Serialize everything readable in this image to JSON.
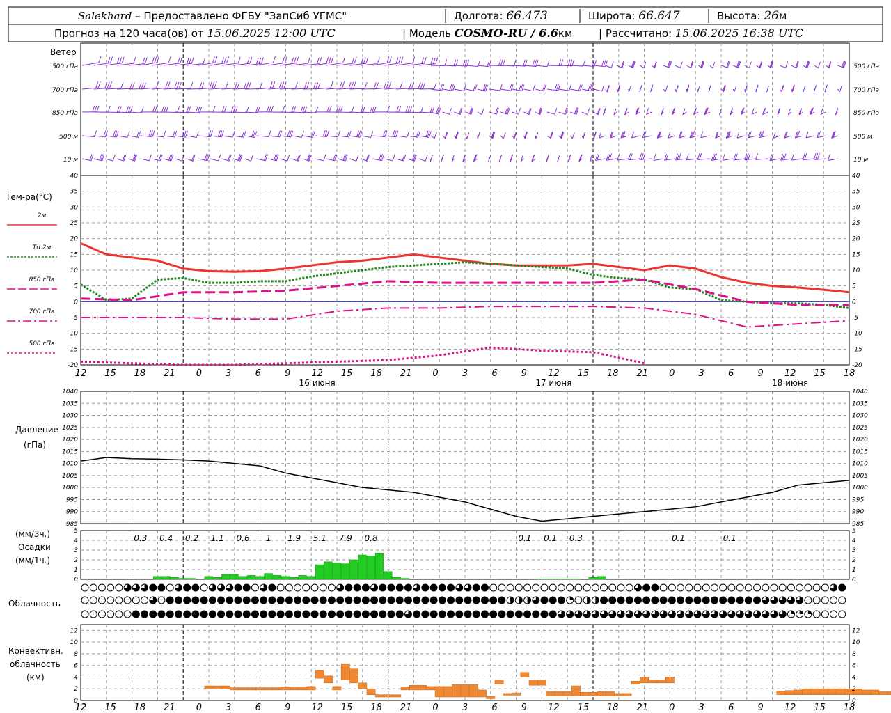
{
  "header": {
    "station": "Salekhard",
    "provider": " – Предоставлено ФГБУ \"ЗапСиб УГМС\"",
    "lon_label": "Долгота:",
    "lon": "66.473",
    "lat_label": "Широта:",
    "lat": "66.647",
    "alt_label": "Высота:",
    "alt": "26",
    "alt_unit": "м",
    "fc_label": "Прогноз на 120 часа(ов) от",
    "fc_time": "15.06.2025 12:00 UTC",
    "model_label": "| Модель",
    "model": "COSMO-RU / 6.6",
    "model_unit": "км",
    "calc_label": "| Рассчитано:",
    "calc_time": "15.06.2025 16:38 UTC"
  },
  "x_axis": {
    "hour_labels": [
      "12",
      "15",
      "18",
      "21",
      "0",
      "3",
      "6",
      "9",
      "12",
      "15",
      "18",
      "21",
      "0",
      "3",
      "6",
      "9",
      "12",
      "15",
      "18",
      "21",
      "0",
      "3",
      "6",
      "9",
      "12",
      "15",
      "18"
    ],
    "day_labels": [
      {
        "label": "16 июня",
        "hour": 12
      },
      {
        "label": "17 июня",
        "hour": 36
      },
      {
        "label": "18 июня",
        "hour": 60
      }
    ]
  },
  "wind_panel": {
    "title": "Ветер",
    "levels": [
      "500 гПа",
      "700 гПа",
      "850 гПа",
      "500 м",
      "10  м"
    ]
  },
  "temp_panel": {
    "title": "Тем-ра(°C)",
    "legend": [
      {
        "label": "2м",
        "color": "#ee3333",
        "style": "solid"
      },
      {
        "label": "Td  2м",
        "color": "#228822",
        "style": "dotted"
      },
      {
        "label": "850 гПа",
        "color": "#dd1188",
        "style": "dashed"
      },
      {
        "label": "700 гПа",
        "color": "#dd1188",
        "style": "dashdot"
      },
      {
        "label": "500 гПа",
        "color": "#dd1188",
        "style": "dot"
      }
    ],
    "y_ticks": [
      40,
      35,
      30,
      25,
      20,
      15,
      10,
      5,
      0,
      -5,
      -10,
      -15,
      -20
    ]
  },
  "pressure_panel": {
    "title_1": "Давление",
    "title_2": "(гПа)",
    "y_ticks": [
      1040,
      1035,
      1030,
      1025,
      1020,
      1015,
      1010,
      1005,
      1000,
      995,
      990,
      985
    ]
  },
  "precip_panel": {
    "unit_3h": "(мм/3ч.)",
    "title": "Осадки",
    "unit_1h": "(мм/1ч.)",
    "y_ticks": [
      5,
      4,
      3,
      2,
      1,
      0
    ],
    "totals": [
      {
        "h": 9,
        "v": "0.3"
      },
      {
        "h": 12,
        "v": "0.4"
      },
      {
        "h": 15,
        "v": "0.2"
      },
      {
        "h": 18,
        "v": "1.1"
      },
      {
        "h": 21,
        "v": "0.6"
      },
      {
        "h": 24,
        "v": "1"
      },
      {
        "h": 27,
        "v": "1.9"
      },
      {
        "h": 30,
        "v": "5.1"
      },
      {
        "h": 33,
        "v": "7.9"
      },
      {
        "h": 36,
        "v": "0.8"
      },
      {
        "h": 54,
        "v": "0.1"
      },
      {
        "h": 57,
        "v": "0.1"
      },
      {
        "h": 60,
        "v": "0.3"
      },
      {
        "h": 72,
        "v": "0.1"
      },
      {
        "h": 78,
        "v": "0.1"
      }
    ]
  },
  "cloud_panel": {
    "title": "Облачность",
    "rows": [
      "0000033344034403334403400000003444344443444433440000000000000000034400000000000000000000344444444444444444444433441143",
      "0000000030444444444444444444444444444444444444444422234441022444444444444444444433333000000000000000000000000000000000",
      "0000004444444444444444444444444444444434444444444444444433333333333333333333333333311100000000000000000000000000044444"
    ]
  },
  "conv_panel": {
    "title_1": "Конвективн.",
    "title_2": "облачность",
    "title_3": "(км)",
    "y_ticks": [
      12,
      10,
      8,
      6,
      4,
      2,
      0
    ]
  },
  "colors": {
    "wind": "#8833cc",
    "t2m": "#ee3333",
    "td2m": "#228822",
    "t850": "#dd1188",
    "t700": "#dd1188",
    "t500": "#dd1188",
    "zero_line": "#3333cc",
    "pressure": "#000000",
    "precip": "#22cc22",
    "conv": "#ee8833",
    "grid": "#999999"
  },
  "chart_data": [
    {
      "type": "line",
      "title": "Тем-ра(°C)",
      "ylim": [
        -20,
        40
      ],
      "x_unit": "hours from 15.06.2025 12:00 UTC",
      "series": [
        {
          "name": "2м",
          "x": [
            0,
            3,
            6,
            9,
            12,
            15,
            18,
            21,
            24,
            27,
            30,
            33,
            36,
            39,
            42,
            45,
            48,
            51,
            54,
            57,
            60,
            63,
            66,
            69,
            72,
            75,
            78,
            81,
            84,
            87,
            90
          ],
          "values": [
            18.5,
            15,
            14,
            13,
            10.5,
            9.7,
            9.5,
            9.7,
            10.5,
            11.5,
            12.5,
            13,
            14,
            15,
            14,
            13,
            12,
            11.5,
            11.5,
            11.5,
            12,
            11,
            10,
            11.5,
            10.5,
            7.8,
            6,
            5,
            4.5,
            3.8,
            3
          ]
        },
        {
          "name": "Td  2м",
          "x": [
            0,
            3,
            6,
            9,
            12,
            15,
            18,
            21,
            24,
            27,
            30,
            33,
            36,
            39,
            42,
            45,
            48,
            51,
            54,
            57,
            60,
            63,
            66,
            69,
            72,
            75,
            78,
            81,
            84,
            87,
            90
          ],
          "values": [
            5.5,
            0.5,
            1,
            7,
            7.5,
            6,
            6,
            6.5,
            6.5,
            8,
            9,
            10,
            11,
            11.5,
            12,
            12.5,
            12,
            11.5,
            11,
            10.5,
            8.5,
            7.5,
            7,
            4.5,
            4,
            0.5,
            0,
            -0.5,
            -0.5,
            -1,
            -2
          ]
        },
        {
          "name": "850 гПа",
          "x": [
            0,
            6,
            12,
            18,
            24,
            30,
            36,
            42,
            48,
            54,
            60,
            66,
            72,
            78,
            84,
            90
          ],
          "values": [
            1,
            0.5,
            3,
            3,
            3.5,
            5,
            6.5,
            6,
            6,
            6,
            6,
            7,
            4,
            0,
            -1,
            -1
          ]
        },
        {
          "name": "700 гПа",
          "x": [
            0,
            6,
            12,
            18,
            24,
            30,
            36,
            42,
            48,
            54,
            60,
            66,
            72,
            78,
            84,
            90
          ],
          "values": [
            -5,
            -5,
            -5,
            -5.5,
            -5.5,
            -3,
            -2,
            -2,
            -1.5,
            -1.5,
            -1.5,
            -2,
            -4,
            -8,
            -7,
            -6
          ]
        },
        {
          "name": "500 гПа",
          "x": [
            0,
            6,
            12,
            18,
            24,
            30,
            36,
            42,
            48,
            54,
            60,
            66
          ],
          "values": [
            -19,
            -19.5,
            -20,
            -20,
            -19.5,
            -19,
            -18.5,
            -17,
            -14.5,
            -15.5,
            -16,
            -19.5
          ]
        }
      ]
    },
    {
      "type": "line",
      "title": "Давление (гПа)",
      "ylim": [
        985,
        1040
      ],
      "x": [
        0,
        3,
        6,
        9,
        12,
        15,
        18,
        21,
        24,
        27,
        30,
        33,
        36,
        39,
        42,
        45,
        48,
        51,
        54,
        57,
        60,
        63,
        66,
        69,
        72,
        75,
        78,
        81,
        84,
        87,
        90
      ],
      "values": [
        1011,
        1012.5,
        1012,
        1011.8,
        1011.5,
        1011,
        1010,
        1009,
        1006,
        1004,
        1002,
        1000,
        999,
        998,
        996,
        994,
        991,
        988,
        986,
        987,
        988,
        989,
        990,
        991,
        992,
        994,
        996,
        998,
        1001,
        1002,
        1003
      ]
    },
    {
      "type": "bar",
      "title": "Осадки (мм/1ч.)",
      "ylim": [
        0,
        5
      ],
      "x": [
        9,
        10,
        11,
        12,
        13,
        14,
        15,
        16,
        17,
        18,
        19,
        20,
        21,
        22,
        23,
        24,
        25,
        26,
        27,
        28,
        29,
        30,
        31,
        32,
        33,
        34,
        35,
        36,
        37,
        38,
        54,
        55,
        56,
        57,
        58,
        60,
        61
      ],
      "values": [
        0.3,
        0.3,
        0.2,
        0.1,
        0.1,
        0.0,
        0.3,
        0.2,
        0.5,
        0.5,
        0.3,
        0.4,
        0.3,
        0.6,
        0.4,
        0.3,
        0.2,
        0.4,
        0.3,
        1.5,
        1.8,
        1.7,
        1.6,
        2.0,
        2.5,
        2.4,
        2.7,
        0.8,
        0.2,
        0.1,
        0.05,
        0.05,
        0.05,
        0.05,
        0.05,
        0.2,
        0.3
      ]
    },
    {
      "type": "bar",
      "title": "Конвективн. облачность (км)",
      "ylim": [
        0,
        13
      ],
      "bars": [
        {
          "x": [
            15,
            16,
            17
          ],
          "top": [
            2.5,
            2.5,
            2.5
          ],
          "base": [
            2,
            2,
            2
          ]
        },
        {
          "x": [
            18,
            19,
            20,
            21,
            22,
            23,
            24
          ],
          "top": [
            2.2,
            2.2,
            2.2,
            2.2,
            2.2,
            2.2,
            2.3
          ],
          "base": [
            1.8,
            1.8,
            1.8,
            1.8,
            1.8,
            1.8,
            1.8
          ]
        },
        {
          "x": [
            25,
            26,
            27,
            28,
            29,
            30,
            31
          ],
          "top": [
            2.3,
            2.3,
            2.4,
            5.2,
            4.2,
            2.4,
            6.3
          ],
          "base": [
            1.8,
            1.8,
            1.8,
            3.8,
            3,
            1.8,
            3.5
          ]
        },
        {
          "x": [
            32,
            33,
            34,
            35
          ],
          "top": [
            5.4,
            3,
            2,
            1
          ],
          "base": [
            3,
            2,
            1,
            0.6
          ]
        },
        {
          "x": [
            36,
            37,
            38,
            39,
            40,
            41
          ],
          "top": [
            1,
            1,
            2.3,
            2.6,
            2.6,
            2.4
          ],
          "base": [
            0.6,
            0.6,
            1.8,
            1.8,
            1.8,
            1.8
          ]
        },
        {
          "x": [
            42,
            43,
            44,
            45,
            46,
            47,
            48
          ],
          "top": [
            2.4,
            2.4,
            2.7,
            2.7,
            2.7,
            1.8,
            0.7
          ],
          "base": [
            0.6,
            0.6,
            0.6,
            0.6,
            0.6,
            0.6,
            0.3
          ]
        },
        {
          "x": [
            49,
            50,
            51,
            52,
            53,
            54,
            55
          ],
          "top": [
            3.5,
            1.2,
            1.3,
            4.8,
            3.5,
            3.5,
            1.5
          ],
          "base": [
            2.8,
            0.9,
            0.9,
            4,
            2.6,
            2.6,
            0.8
          ]
        },
        {
          "x": [
            56,
            57,
            58,
            59,
            60,
            61,
            62
          ],
          "top": [
            1.5,
            1.5,
            2.5,
            1.4,
            1.4,
            1.5,
            1.5
          ],
          "base": [
            0.8,
            0.8,
            0.8,
            0.8,
            0.8,
            0.8,
            0.8
          ]
        },
        {
          "x": [
            63,
            64,
            65,
            66,
            67,
            68,
            69
          ],
          "top": [
            1.2,
            1.2,
            3.3,
            4,
            3.5,
            3.5,
            4
          ],
          "base": [
            0.8,
            0.8,
            2.8,
            3,
            3,
            3,
            3
          ]
        },
        {
          "x": [
            82,
            83,
            84,
            85,
            86,
            87,
            88,
            89,
            90,
            91,
            92,
            93,
            94,
            95,
            96,
            97,
            98
          ],
          "top": [
            1.6,
            1.7,
            1.8,
            2,
            2,
            2,
            2,
            2,
            2,
            2,
            1.8,
            1.8,
            1.5,
            1.5,
            1.3,
            1.3,
            1.2
          ],
          "base": [
            1,
            1,
            1,
            1,
            1,
            1,
            1,
            1,
            1,
            1,
            1,
            1,
            1,
            1,
            1,
            1,
            1
          ]
        }
      ]
    }
  ]
}
